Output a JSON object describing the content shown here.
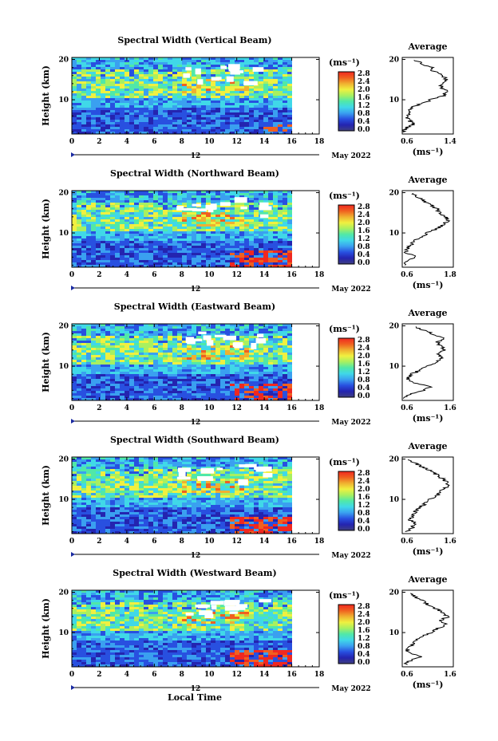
{
  "figure": {
    "xlabel": "Local Time",
    "date_label": "May 2022",
    "date_day": "12",
    "unit_label": "(ms⁻¹)",
    "avg_title": "Average",
    "ylabel": "Height (km)"
  },
  "colors": {
    "scale": [
      "#3f3f80",
      "#2424b0",
      "#2850e0",
      "#3aa0f0",
      "#40d8e8",
      "#50e8a8",
      "#a8f060",
      "#f0f040",
      "#f0b030",
      "#f06020",
      "#f02820"
    ],
    "red_patch": "#f02820"
  },
  "chart_data": [
    {
      "type": "heatmap",
      "title": "Spectral Width (Vertical Beam)",
      "x_ticks": [
        0,
        2,
        4,
        6,
        8,
        10,
        12,
        14,
        16,
        18
      ],
      "y_ticks": [
        10,
        20
      ],
      "xlim": [
        0,
        18
      ],
      "ylim": [
        1.5,
        20.5
      ],
      "data_xmax": 16,
      "colorbar_ticks": [
        "0.0",
        "0.4",
        "0.8",
        "1.2",
        "1.6",
        "2.0",
        "2.4",
        "2.8"
      ],
      "colorbar_range": [
        0,
        2.8
      ],
      "average": {
        "xlim": [
          0.6,
          1.4
        ],
        "x_ticks": [
          "0.6",
          "1.4"
        ],
        "y_ticks": [
          10,
          20
        ],
        "profile": [
          [
            2,
            0.62
          ],
          [
            3,
            0.66
          ],
          [
            4,
            0.78
          ],
          [
            5,
            0.7
          ],
          [
            6,
            0.66
          ],
          [
            7,
            0.72
          ],
          [
            8,
            0.74
          ],
          [
            9,
            0.9
          ],
          [
            10,
            1.05
          ],
          [
            11,
            1.25
          ],
          [
            12,
            1.3
          ],
          [
            13,
            1.22
          ],
          [
            14,
            1.2
          ],
          [
            15,
            1.3
          ],
          [
            16,
            1.22
          ],
          [
            17,
            1.1
          ],
          [
            18,
            1.05
          ],
          [
            19,
            0.9
          ],
          [
            20,
            0.8
          ]
        ]
      }
    },
    {
      "type": "heatmap",
      "title": "Spectral Width (Northward Beam)",
      "x_ticks": [
        0,
        2,
        4,
        6,
        8,
        10,
        12,
        14,
        16,
        18
      ],
      "y_ticks": [
        10,
        20
      ],
      "xlim": [
        0,
        18
      ],
      "ylim": [
        1.5,
        20.5
      ],
      "data_xmax": 16,
      "colorbar_ticks": [
        "0.0",
        "0.4",
        "0.8",
        "1.2",
        "1.6",
        "2.0",
        "2.4",
        "2.8"
      ],
      "colorbar_range": [
        0,
        2.8
      ],
      "average": {
        "xlim": [
          0.6,
          1.8
        ],
        "x_ticks": [
          "0.6",
          "1.8"
        ],
        "y_ticks": [
          10,
          20
        ],
        "profile": [
          [
            2,
            0.66
          ],
          [
            3,
            0.72
          ],
          [
            4,
            0.95
          ],
          [
            5,
            0.7
          ],
          [
            6,
            0.72
          ],
          [
            7,
            0.8
          ],
          [
            8,
            0.86
          ],
          [
            9,
            1.05
          ],
          [
            10,
            1.2
          ],
          [
            11,
            1.4
          ],
          [
            12,
            1.55
          ],
          [
            13,
            1.68
          ],
          [
            14,
            1.62
          ],
          [
            15,
            1.5
          ],
          [
            16,
            1.4
          ],
          [
            17,
            1.3
          ],
          [
            18,
            1.1
          ],
          [
            19,
            0.95
          ],
          [
            20,
            0.85
          ]
        ]
      }
    },
    {
      "type": "heatmap",
      "title": "Spectral Width (Eastward Beam)",
      "x_ticks": [
        0,
        2,
        4,
        6,
        8,
        10,
        12,
        14,
        16,
        18
      ],
      "y_ticks": [
        10,
        20
      ],
      "xlim": [
        0,
        18
      ],
      "ylim": [
        1.5,
        20.5
      ],
      "data_xmax": 16,
      "colorbar_ticks": [
        "0.0",
        "0.4",
        "0.8",
        "1.2",
        "1.6",
        "2.0",
        "2.4",
        "2.8"
      ],
      "colorbar_range": [
        0,
        2.8
      ],
      "average": {
        "xlim": [
          0.6,
          1.6
        ],
        "x_ticks": [
          "0.6",
          "1.6"
        ],
        "y_ticks": [
          10,
          20
        ],
        "profile": [
          [
            2,
            0.66
          ],
          [
            3,
            0.75
          ],
          [
            4,
            1.05
          ],
          [
            5,
            1.15
          ],
          [
            6,
            0.8
          ],
          [
            7,
            0.7
          ],
          [
            8,
            0.78
          ],
          [
            9,
            0.95
          ],
          [
            10,
            1.1
          ],
          [
            11,
            1.25
          ],
          [
            12,
            1.4
          ],
          [
            13,
            1.3
          ],
          [
            14,
            1.45
          ],
          [
            15,
            1.35
          ],
          [
            16,
            1.3
          ],
          [
            17,
            1.4
          ],
          [
            18,
            1.2
          ],
          [
            19,
            1.0
          ],
          [
            20,
            0.85
          ]
        ]
      }
    },
    {
      "type": "heatmap",
      "title": "Spectral Width (Southward Beam)",
      "x_ticks": [
        0,
        2,
        4,
        6,
        8,
        10,
        12,
        14,
        16,
        18
      ],
      "y_ticks": [
        10,
        20
      ],
      "xlim": [
        0,
        18
      ],
      "ylim": [
        1.5,
        20.5
      ],
      "data_xmax": 16,
      "colorbar_ticks": [
        "0.0",
        "0.4",
        "0.8",
        "1.2",
        "1.6",
        "2.0",
        "2.4",
        "2.8"
      ],
      "colorbar_range": [
        0,
        2.8
      ],
      "average": {
        "xlim": [
          0.6,
          1.6
        ],
        "x_ticks": [
          "0.6",
          "1.6"
        ],
        "y_ticks": [
          10,
          20
        ],
        "profile": [
          [
            2,
            0.68
          ],
          [
            3,
            0.8
          ],
          [
            4,
            0.85
          ],
          [
            5,
            0.75
          ],
          [
            6,
            0.8
          ],
          [
            7,
            0.85
          ],
          [
            8,
            0.95
          ],
          [
            9,
            1.05
          ],
          [
            10,
            1.15
          ],
          [
            11,
            1.3
          ],
          [
            12,
            1.35
          ],
          [
            13,
            1.45
          ],
          [
            14,
            1.5
          ],
          [
            15,
            1.4
          ],
          [
            16,
            1.3
          ],
          [
            17,
            1.15
          ],
          [
            18,
            1.0
          ],
          [
            19,
            0.85
          ],
          [
            20,
            0.7
          ]
        ]
      }
    },
    {
      "type": "heatmap",
      "title": "Spectral Width (Westward Beam)",
      "x_ticks": [
        0,
        2,
        4,
        6,
        8,
        10,
        12,
        14,
        16,
        18
      ],
      "y_ticks": [
        10,
        20
      ],
      "xlim": [
        0,
        18
      ],
      "ylim": [
        1.5,
        20.5
      ],
      "data_xmax": 16,
      "colorbar_ticks": [
        "0.0",
        "0.4",
        "0.8",
        "1.2",
        "1.6",
        "2.0",
        "2.4",
        "2.8"
      ],
      "colorbar_range": [
        0,
        2.8
      ],
      "average": {
        "xlim": [
          0.6,
          1.6
        ],
        "x_ticks": [
          "0.6",
          "1.6"
        ],
        "y_ticks": [
          10,
          20
        ],
        "profile": [
          [
            2,
            0.66
          ],
          [
            3,
            0.75
          ],
          [
            4,
            0.95
          ],
          [
            5,
            0.72
          ],
          [
            6,
            0.7
          ],
          [
            7,
            0.8
          ],
          [
            8,
            0.88
          ],
          [
            9,
            1.0
          ],
          [
            10,
            1.15
          ],
          [
            11,
            1.3
          ],
          [
            12,
            1.45
          ],
          [
            13,
            1.35
          ],
          [
            14,
            1.5
          ],
          [
            15,
            1.4
          ],
          [
            16,
            1.25
          ],
          [
            17,
            1.1
          ],
          [
            18,
            1.0
          ],
          [
            19,
            0.85
          ],
          [
            20,
            0.75
          ]
        ]
      }
    }
  ]
}
